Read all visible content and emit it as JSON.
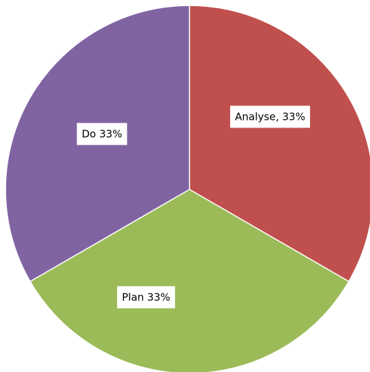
{
  "chart_data": {
    "type": "pie",
    "values": [
      33,
      33,
      33
    ],
    "value_labels": [
      "Analyse, 33%",
      "Plan 33%",
      "Do 33%"
    ],
    "colors": [
      "#c0504d",
      "#9bbb59",
      "#8064a2"
    ]
  }
}
